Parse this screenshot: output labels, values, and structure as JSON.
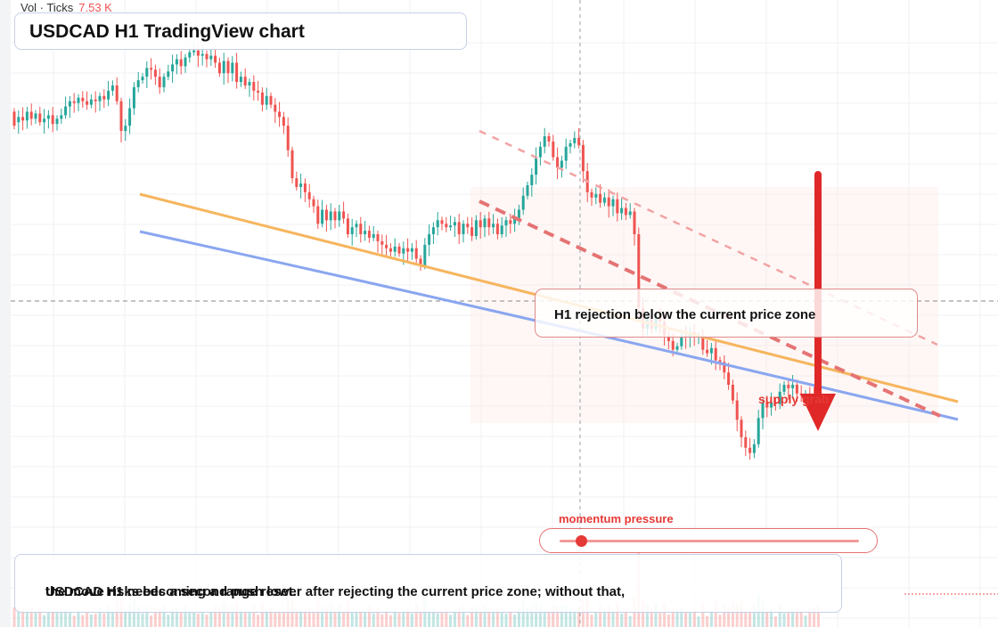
{
  "header": {
    "title": "USDCAD H1 TradingView chart"
  },
  "volume_readout": {
    "label": "Vol · Ticks",
    "value": "7.53 K"
  },
  "annotations": {
    "zone_label": "H1 rejection below the current price zone",
    "supply_label": "supply grab",
    "momentum_label": "momentum pressure",
    "momentum_level": 0.07,
    "summary_line1": "USDCAD H1 needs a second push lower after rejecting the current price zone; without that,",
    "summary_line2": "the move risks becoming a range reset."
  },
  "colors": {
    "bull": "#26a69a",
    "bear": "#ef5350",
    "trend_orange": "#f6b55e",
    "trend_blue": "#8aa6f0",
    "accent_red": "#e53935"
  },
  "chart_data": {
    "type": "candlestick",
    "instrument": "USDCAD",
    "timeframe": "H1",
    "y_axis_unit": "price (relative)",
    "ylim": [
      0,
      100
    ],
    "candles": [
      {
        "o": 78,
        "c": 74
      },
      {
        "o": 75,
        "c": 76.5
      },
      {
        "o": 76.5,
        "c": 75.5
      },
      {
        "o": 75.5,
        "c": 78
      },
      {
        "o": 78,
        "c": 76
      },
      {
        "o": 76,
        "c": 77.5
      },
      {
        "o": 77.5,
        "c": 75
      },
      {
        "o": 75,
        "c": 76
      },
      {
        "o": 76,
        "c": 77
      },
      {
        "o": 77,
        "c": 74.5
      },
      {
        "o": 74.5,
        "c": 76
      },
      {
        "o": 76,
        "c": 77
      },
      {
        "o": 77,
        "c": 79.5
      },
      {
        "o": 79.5,
        "c": 81
      },
      {
        "o": 81,
        "c": 80.5
      },
      {
        "o": 80.5,
        "c": 82
      },
      {
        "o": 82,
        "c": 81
      },
      {
        "o": 81,
        "c": 80
      },
      {
        "o": 80,
        "c": 81.5
      },
      {
        "o": 81.5,
        "c": 81
      },
      {
        "o": 81,
        "c": 82.5
      },
      {
        "o": 82.5,
        "c": 81.5
      },
      {
        "o": 81.5,
        "c": 84
      },
      {
        "o": 84,
        "c": 85.5
      },
      {
        "o": 85.5,
        "c": 81
      },
      {
        "o": 81,
        "c": 72.5
      },
      {
        "o": 72.5,
        "c": 74
      },
      {
        "o": 74,
        "c": 79
      },
      {
        "o": 79,
        "c": 85
      },
      {
        "o": 85,
        "c": 87
      },
      {
        "o": 87,
        "c": 88
      },
      {
        "o": 88,
        "c": 90.5
      },
      {
        "o": 90.5,
        "c": 90
      },
      {
        "o": 90,
        "c": 88
      },
      {
        "o": 88,
        "c": 85
      },
      {
        "o": 85,
        "c": 88
      },
      {
        "o": 88,
        "c": 89.5
      },
      {
        "o": 89.5,
        "c": 91.5
      },
      {
        "o": 91.5,
        "c": 93
      },
      {
        "o": 93,
        "c": 91
      },
      {
        "o": 91,
        "c": 93.5
      },
      {
        "o": 93.5,
        "c": 95
      },
      {
        "o": 95,
        "c": 95.5
      },
      {
        "o": 95.5,
        "c": 94
      },
      {
        "o": 94,
        "c": 94.5
      },
      {
        "o": 94.5,
        "c": 93
      },
      {
        "o": 93,
        "c": 94
      },
      {
        "o": 94,
        "c": 92
      },
      {
        "o": 92,
        "c": 89
      },
      {
        "o": 89,
        "c": 92.5
      },
      {
        "o": 92.5,
        "c": 89
      },
      {
        "o": 89,
        "c": 92
      },
      {
        "o": 92,
        "c": 86.5
      },
      {
        "o": 86.5,
        "c": 88
      },
      {
        "o": 88,
        "c": 85.5
      },
      {
        "o": 85.5,
        "c": 86.5
      },
      {
        "o": 86.5,
        "c": 84
      },
      {
        "o": 84,
        "c": 83.5
      },
      {
        "o": 83.5,
        "c": 80
      },
      {
        "o": 80,
        "c": 82.5
      },
      {
        "o": 82.5,
        "c": 80
      },
      {
        "o": 80,
        "c": 78
      },
      {
        "o": 78,
        "c": 76.5
      },
      {
        "o": 76.5,
        "c": 74
      },
      {
        "o": 74,
        "c": 67
      },
      {
        "o": 67,
        "c": 59
      },
      {
        "o": 59,
        "c": 56.5
      },
      {
        "o": 56.5,
        "c": 57.5
      },
      {
        "o": 57.5,
        "c": 55
      },
      {
        "o": 55,
        "c": 53
      },
      {
        "o": 53,
        "c": 51
      },
      {
        "o": 51,
        "c": 46
      },
      {
        "o": 46,
        "c": 50
      },
      {
        "o": 50,
        "c": 47
      },
      {
        "o": 47,
        "c": 49.5
      },
      {
        "o": 49.5,
        "c": 47
      },
      {
        "o": 47,
        "c": 49.5
      },
      {
        "o": 49.5,
        "c": 47.5
      },
      {
        "o": 47.5,
        "c": 43
      },
      {
        "o": 43,
        "c": 45
      },
      {
        "o": 45,
        "c": 46
      },
      {
        "o": 46,
        "c": 43
      },
      {
        "o": 43,
        "c": 44
      },
      {
        "o": 44,
        "c": 42
      },
      {
        "o": 42,
        "c": 43
      },
      {
        "o": 43,
        "c": 41
      },
      {
        "o": 41,
        "c": 40
      },
      {
        "o": 40,
        "c": 39
      },
      {
        "o": 39,
        "c": 38
      },
      {
        "o": 38,
        "c": 39.5
      },
      {
        "o": 39.5,
        "c": 37.5
      },
      {
        "o": 37.5,
        "c": 39
      },
      {
        "o": 39,
        "c": 38
      },
      {
        "o": 38,
        "c": 39
      },
      {
        "o": 39,
        "c": 36
      },
      {
        "o": 36,
        "c": 34
      },
      {
        "o": 34,
        "c": 40
      },
      {
        "o": 40,
        "c": 43
      },
      {
        "o": 43,
        "c": 45
      },
      {
        "o": 45,
        "c": 47
      },
      {
        "o": 47,
        "c": 46
      },
      {
        "o": 46,
        "c": 45
      },
      {
        "o": 45,
        "c": 45.5
      },
      {
        "o": 45.5,
        "c": 46.5
      },
      {
        "o": 46.5,
        "c": 43
      },
      {
        "o": 43,
        "c": 46
      },
      {
        "o": 46,
        "c": 45
      },
      {
        "o": 45,
        "c": 42.5
      },
      {
        "o": 42.5,
        "c": 47
      },
      {
        "o": 47,
        "c": 45
      },
      {
        "o": 45,
        "c": 47.5
      },
      {
        "o": 47.5,
        "c": 45
      },
      {
        "o": 45,
        "c": 46
      },
      {
        "o": 46,
        "c": 43
      },
      {
        "o": 43,
        "c": 45.5
      },
      {
        "o": 45.5,
        "c": 47
      },
      {
        "o": 47,
        "c": 46
      },
      {
        "o": 46,
        "c": 47.5
      },
      {
        "o": 47.5,
        "c": 50
      },
      {
        "o": 50,
        "c": 54
      },
      {
        "o": 54,
        "c": 57
      },
      {
        "o": 57,
        "c": 60
      },
      {
        "o": 60,
        "c": 65
      },
      {
        "o": 65,
        "c": 68
      },
      {
        "o": 68,
        "c": 71
      },
      {
        "o": 71,
        "c": 69.5
      },
      {
        "o": 69.5,
        "c": 65
      },
      {
        "o": 65,
        "c": 62
      },
      {
        "o": 62,
        "c": 64
      },
      {
        "o": 64,
        "c": 68
      },
      {
        "o": 68,
        "c": 69
      },
      {
        "o": 69,
        "c": 70.5
      },
      {
        "o": 70.5,
        "c": 68.5
      },
      {
        "o": 68.5,
        "c": 61
      },
      {
        "o": 61,
        "c": 55
      },
      {
        "o": 55,
        "c": 53.5
      },
      {
        "o": 53.5,
        "c": 54.5
      },
      {
        "o": 54.5,
        "c": 52
      },
      {
        "o": 52,
        "c": 53.5
      },
      {
        "o": 53.5,
        "c": 51
      },
      {
        "o": 51,
        "c": 53
      },
      {
        "o": 53,
        "c": 49
      },
      {
        "o": 49,
        "c": 50.5
      },
      {
        "o": 50.5,
        "c": 48.5
      },
      {
        "o": 48.5,
        "c": 49.5
      },
      {
        "o": 49.5,
        "c": 43
      },
      {
        "o": 43,
        "c": 22
      },
      {
        "o": 22,
        "c": 16
      },
      {
        "o": 16,
        "c": 19
      },
      {
        "o": 19,
        "c": 16
      },
      {
        "o": 16,
        "c": 20
      },
      {
        "o": 20,
        "c": 18
      },
      {
        "o": 18,
        "c": 14
      },
      {
        "o": 14,
        "c": 12.5
      },
      {
        "o": 12.5,
        "c": 10
      },
      {
        "o": 10,
        "c": 11
      },
      {
        "o": 11,
        "c": 14
      },
      {
        "o": 14,
        "c": 13.5
      },
      {
        "o": 13.5,
        "c": 15
      },
      {
        "o": 15,
        "c": 13.5
      },
      {
        "o": 13.5,
        "c": 14
      },
      {
        "o": 14,
        "c": 10
      },
      {
        "o": 10,
        "c": 9
      },
      {
        "o": 9,
        "c": 10.5
      },
      {
        "o": 10.5,
        "c": 7
      },
      {
        "o": 7,
        "c": 6.5
      },
      {
        "o": 6.5,
        "c": 3.5
      },
      {
        "o": 3.5,
        "c": 0
      },
      {
        "o": 0,
        "c": -4.5
      },
      {
        "o": -4.5,
        "c": -10
      },
      {
        "o": -10,
        "c": -15
      },
      {
        "o": -15,
        "c": -18
      },
      {
        "o": -18,
        "c": -19.5
      },
      {
        "o": -19.5,
        "c": -17
      },
      {
        "o": -17,
        "c": -9.5
      },
      {
        "o": -9.5,
        "c": -5
      },
      {
        "o": -5,
        "c": -6.5
      },
      {
        "o": -6.5,
        "c": -5
      },
      {
        "o": -5,
        "c": -5.5
      },
      {
        "o": -5.5,
        "c": -2
      },
      {
        "o": -2,
        "c": 0
      },
      {
        "o": 0,
        "c": -1
      },
      {
        "o": -1,
        "c": 0
      },
      {
        "o": 0,
        "c": -2.5
      },
      {
        "o": -2.5,
        "c": -3
      },
      {
        "o": -3,
        "c": -2.5
      },
      {
        "o": -2.5,
        "c": -3.5
      },
      {
        "o": -3.5,
        "c": -7
      },
      {
        "o": -7,
        "c": -10
      }
    ],
    "annotations": [
      "H1 rejection below the current price zone",
      "supply grab",
      "momentum pressure"
    ]
  }
}
